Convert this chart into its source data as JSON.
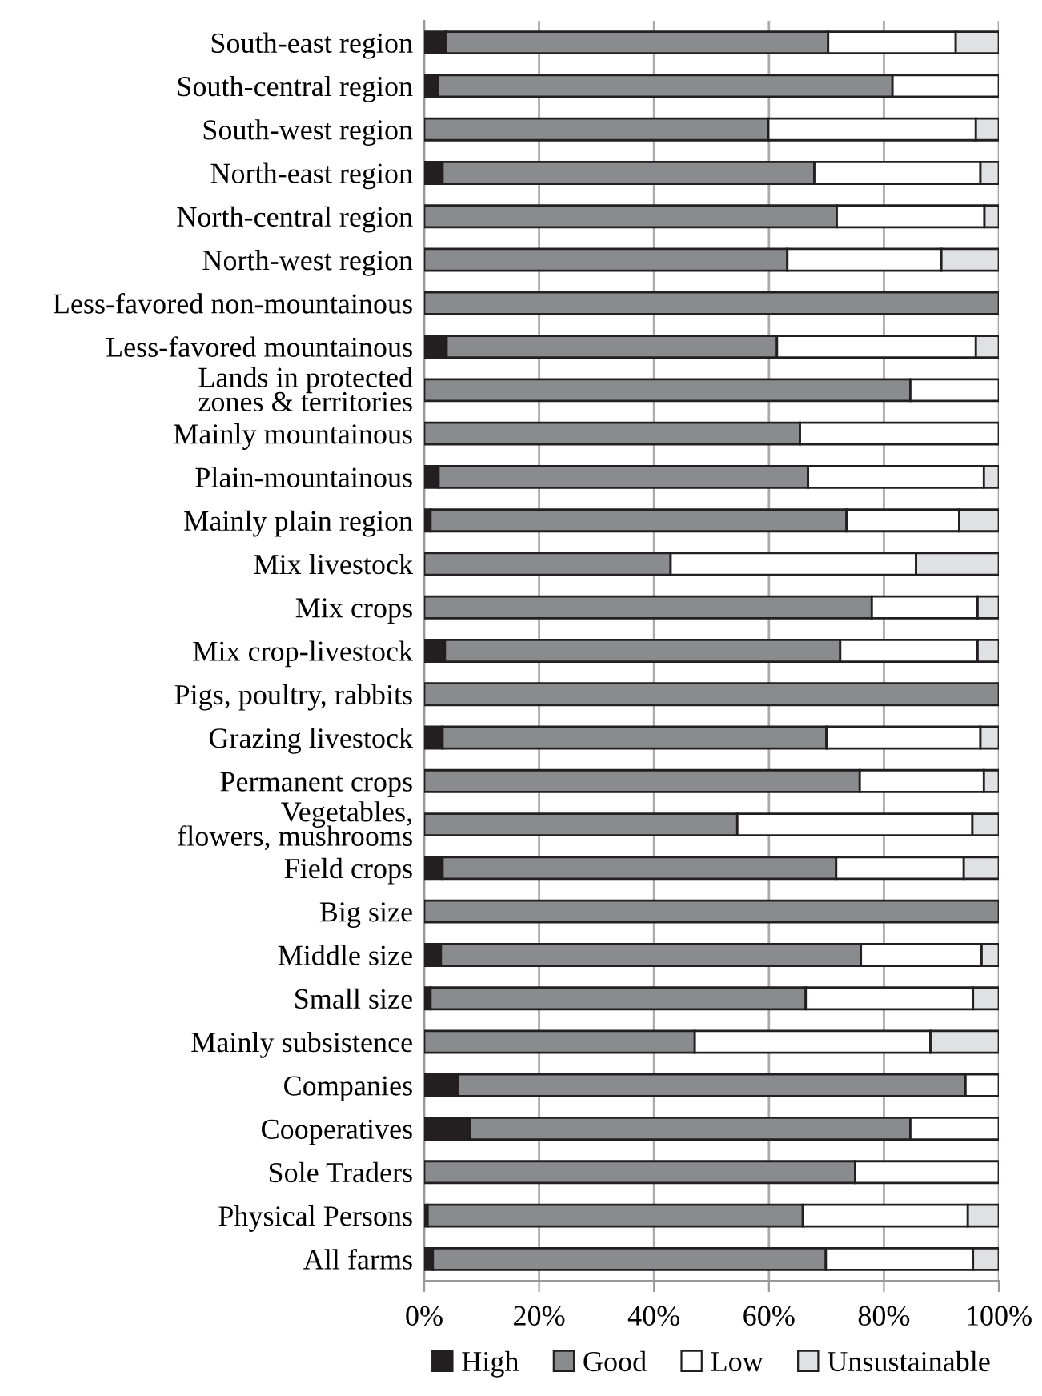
{
  "chart_data": {
    "type": "bar",
    "orientation": "horizontal",
    "stacked": true,
    "categories": [
      "South-east region",
      "South-central region",
      "South-west region",
      "North-east region",
      "North-central region",
      "North-west region",
      "Less-favored non-mountainous",
      "Less-favored mountainous",
      "Lands in protected\nzones & territories",
      "Mainly mountainous",
      "Plain-mountainous",
      "Mainly plain region",
      "Mix livestock",
      "Mix crops",
      "Mix crop-livestock",
      "Pigs, poultry, rabbits",
      "Grazing livestock",
      "Permanent crops",
      "Vegetables,\nflowers, mushrooms",
      "Field crops",
      "Big size",
      "Middle size",
      "Small size",
      "Mainly subsistence",
      "Companies",
      "Cooperatives",
      "Sole Traders",
      "Physical Persons",
      "All farms"
    ],
    "series": [
      {
        "name": "High",
        "color": "#231f20",
        "values": [
          3.7,
          2.4,
          null,
          3.2,
          null,
          null,
          null,
          3.9,
          null,
          null,
          2.5,
          1.1,
          null,
          null,
          3.6,
          null,
          3.2,
          null,
          null,
          3.2,
          null,
          2.9,
          1.1,
          null,
          5.8,
          8.0,
          null,
          0.6,
          1.5
        ]
      },
      {
        "name": "Good",
        "color": "#8a8b8d",
        "values": [
          66.6,
          79.1,
          59.9,
          64.7,
          71.8,
          63.2,
          100,
          57.5,
          84.6,
          65.4,
          64.3,
          72.4,
          42.9,
          77.9,
          68.8,
          100,
          66.8,
          75.8,
          54.5,
          68.5,
          100,
          73.1,
          65.3,
          47.1,
          88.4,
          76.6,
          75.0,
          65.3,
          68.4
        ]
      },
      {
        "name": "Low",
        "color": "#ffffff",
        "values": [
          22.2,
          18.5,
          36.1,
          28.9,
          25.7,
          26.8,
          null,
          34.6,
          15.4,
          34.6,
          30.6,
          19.6,
          42.7,
          18.4,
          23.9,
          null,
          26.8,
          21.6,
          40.9,
          22.2,
          null,
          21.0,
          29.1,
          41.0,
          5.8,
          15.4,
          25.0,
          28.7,
          25.6
        ]
      },
      {
        "name": "Unsustainable",
        "color": "#e0e1e2",
        "values": [
          7.5,
          null,
          4.0,
          3.2,
          2.5,
          10.0,
          null,
          4.0,
          null,
          null,
          2.6,
          6.9,
          14.4,
          3.7,
          3.7,
          null,
          3.2,
          2.6,
          4.6,
          6.1,
          null,
          3.0,
          4.5,
          11.9,
          null,
          null,
          null,
          5.4,
          4.5
        ]
      }
    ],
    "xlim": [
      0,
      100
    ],
    "xticks": [
      {
        "value": 0,
        "label": "0%"
      },
      {
        "value": 20,
        "label": "20%"
      },
      {
        "value": 40,
        "label": "40%"
      },
      {
        "value": 60,
        "label": "60%"
      },
      {
        "value": 80,
        "label": "80%"
      },
      {
        "value": 100,
        "label": "100%"
      }
    ],
    "grid": "x",
    "legend": "bottom"
  }
}
